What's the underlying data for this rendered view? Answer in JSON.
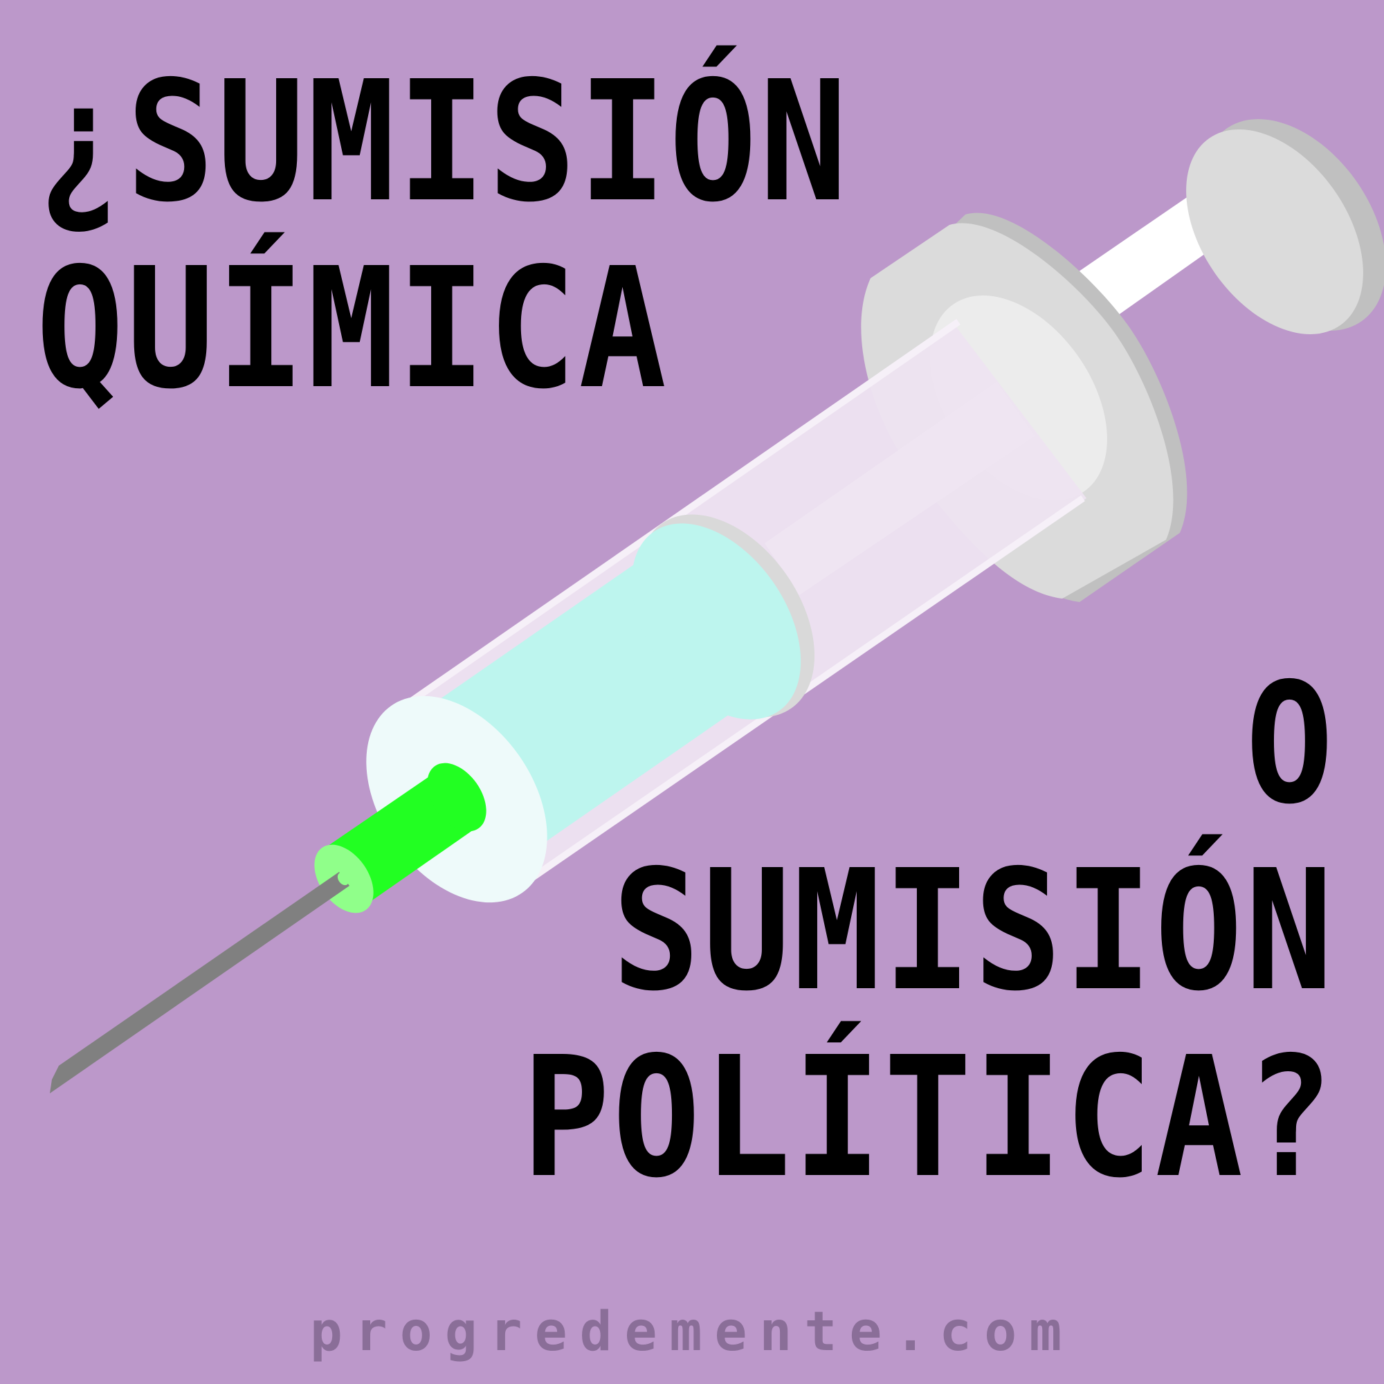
{
  "headline": {
    "line1": "¿SUMISIÓN",
    "line2": "QUÍMICA",
    "line3": "O",
    "line4": "SUMISIÓN",
    "line5": "POLÍTICA?"
  },
  "website": "progredemente.com",
  "colors": {
    "background": "#BC98CA",
    "text": "#000000",
    "website_text": "#8A6E98",
    "needle": "#808080",
    "needle_hub": "#22FF22",
    "liquid": "#BDF5EE",
    "plunger": "#FFFFFF",
    "flange": "#DBDBDB"
  },
  "illustration": {
    "subject": "syringe-icon"
  }
}
